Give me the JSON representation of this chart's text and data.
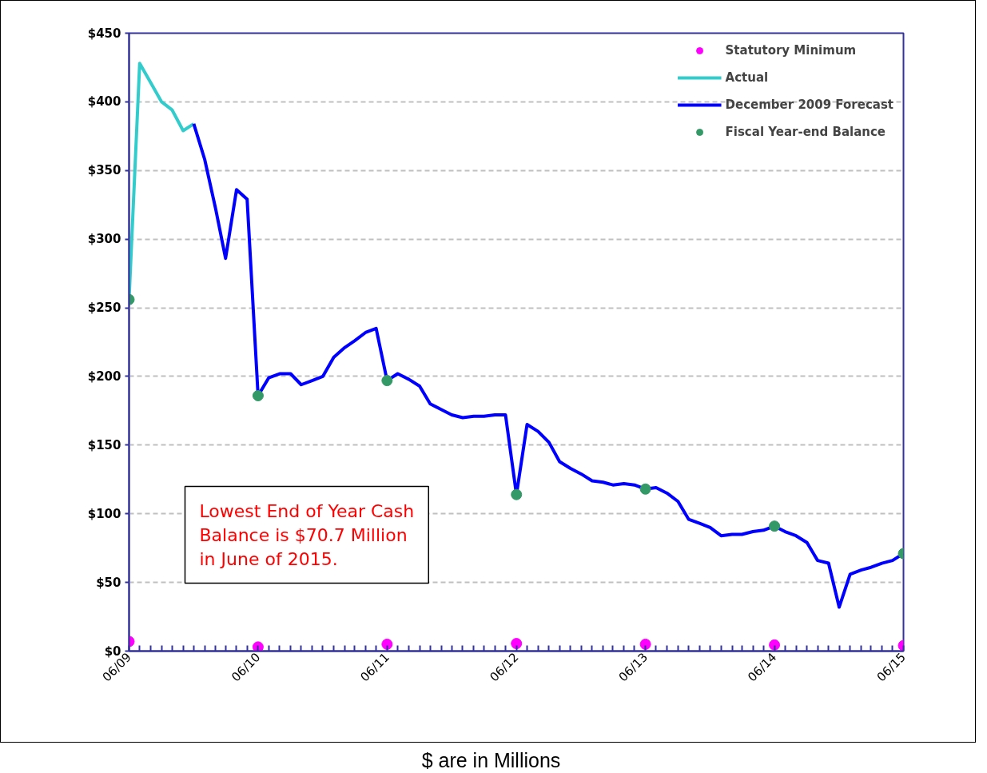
{
  "chart_data": {
    "type": "line",
    "xlim": [
      "2009-06",
      "2015-06"
    ],
    "ylim": [
      0,
      450
    ],
    "xticks": [
      {
        "value": "2009-06",
        "label": "06/09"
      },
      {
        "value": "2009-07",
        "label": null
      },
      {
        "value": "2009-08",
        "label": null
      },
      {
        "value": "2009-09",
        "label": null
      },
      {
        "value": "2009-10",
        "label": null
      },
      {
        "value": "2009-11",
        "label": null
      },
      {
        "value": "2009-12",
        "label": null
      },
      {
        "value": "2010-01",
        "label": null
      },
      {
        "value": "2010-02",
        "label": null
      },
      {
        "value": "2010-03",
        "label": null
      },
      {
        "value": "2010-04",
        "label": null
      },
      {
        "value": "2010-05",
        "label": null
      },
      {
        "value": "2010-06",
        "label": "06/10"
      },
      {
        "value": "2010-07",
        "label": null
      },
      {
        "value": "2010-08",
        "label": null
      },
      {
        "value": "2010-09",
        "label": null
      },
      {
        "value": "2010-10",
        "label": null
      },
      {
        "value": "2010-11",
        "label": null
      },
      {
        "value": "2010-12",
        "label": null
      },
      {
        "value": "2011-01",
        "label": null
      },
      {
        "value": "2011-02",
        "label": null
      },
      {
        "value": "2011-03",
        "label": null
      },
      {
        "value": "2011-04",
        "label": null
      },
      {
        "value": "2011-05",
        "label": null
      },
      {
        "value": "2011-06",
        "label": "06/11"
      },
      {
        "value": "2011-07",
        "label": null
      },
      {
        "value": "2011-08",
        "label": null
      },
      {
        "value": "2011-09",
        "label": null
      },
      {
        "value": "2011-10",
        "label": null
      },
      {
        "value": "2011-11",
        "label": null
      },
      {
        "value": "2011-12",
        "label": null
      },
      {
        "value": "2012-01",
        "label": null
      },
      {
        "value": "2012-02",
        "label": null
      },
      {
        "value": "2012-03",
        "label": null
      },
      {
        "value": "2012-04",
        "label": null
      },
      {
        "value": "2012-05",
        "label": null
      },
      {
        "value": "2012-06",
        "label": "06/12"
      },
      {
        "value": "2012-07",
        "label": null
      },
      {
        "value": "2012-08",
        "label": null
      },
      {
        "value": "2012-09",
        "label": null
      },
      {
        "value": "2012-10",
        "label": null
      },
      {
        "value": "2012-11",
        "label": null
      },
      {
        "value": "2012-12",
        "label": null
      },
      {
        "value": "2013-01",
        "label": null
      },
      {
        "value": "2013-02",
        "label": null
      },
      {
        "value": "2013-03",
        "label": null
      },
      {
        "value": "2013-04",
        "label": null
      },
      {
        "value": "2013-05",
        "label": null
      },
      {
        "value": "2013-06",
        "label": "06/13"
      },
      {
        "value": "2013-07",
        "label": null
      },
      {
        "value": "2013-08",
        "label": null
      },
      {
        "value": "2013-09",
        "label": null
      },
      {
        "value": "2013-10",
        "label": null
      },
      {
        "value": "2013-11",
        "label": null
      },
      {
        "value": "2013-12",
        "label": null
      },
      {
        "value": "2014-01",
        "label": null
      },
      {
        "value": "2014-02",
        "label": null
      },
      {
        "value": "2014-03",
        "label": null
      },
      {
        "value": "2014-04",
        "label": null
      },
      {
        "value": "2014-05",
        "label": null
      },
      {
        "value": "2014-06",
        "label": "06/14"
      },
      {
        "value": "2014-07",
        "label": null
      },
      {
        "value": "2014-08",
        "label": null
      },
      {
        "value": "2014-09",
        "label": null
      },
      {
        "value": "2014-10",
        "label": null
      },
      {
        "value": "2014-11",
        "label": null
      },
      {
        "value": "2014-12",
        "label": null
      },
      {
        "value": "2015-01",
        "label": null
      },
      {
        "value": "2015-02",
        "label": null
      },
      {
        "value": "2015-03",
        "label": null
      },
      {
        "value": "2015-04",
        "label": null
      },
      {
        "value": "2015-05",
        "label": null
      },
      {
        "value": "2015-06",
        "label": "06/15"
      }
    ],
    "yticks": [
      {
        "value": 0,
        "label": "$0"
      },
      {
        "value": 50,
        "label": "$50"
      },
      {
        "value": 100,
        "label": "$100"
      },
      {
        "value": 150,
        "label": "$150"
      },
      {
        "value": 200,
        "label": "$200"
      },
      {
        "value": 250,
        "label": "$250"
      },
      {
        "value": 300,
        "label": "$300"
      },
      {
        "value": 350,
        "label": "$350"
      },
      {
        "value": 400,
        "label": "$400"
      },
      {
        "value": 450,
        "label": "$450"
      }
    ],
    "grid": "y",
    "legend": "top right",
    "series": [
      {
        "name": "Statutory Minimum",
        "type": "scatter",
        "marker": "circle",
        "color": "#ff00ff",
        "x": [
          "2009-06",
          "2010-06",
          "2011-06",
          "2012-06",
          "2013-06",
          "2014-06",
          "2015-06"
        ],
        "values": [
          7,
          3,
          5,
          5.5,
          5,
          4.5,
          4
        ]
      },
      {
        "name": "Actual",
        "color": "#33cccc",
        "x": [
          "2009-06",
          "2009-07",
          "2009-08",
          "2009-09",
          "2009-10",
          "2009-11",
          "2009-12"
        ],
        "values": [
          256,
          428,
          414,
          400,
          394,
          379,
          384
        ]
      },
      {
        "name": "December 2009 Forecast",
        "color": "#0000ff",
        "x": [
          "2009-12",
          "2010-01",
          "2010-02",
          "2010-03",
          "2010-04",
          "2010-05",
          "2010-06",
          "2010-07",
          "2010-08",
          "2010-09",
          "2010-10",
          "2010-11",
          "2010-12",
          "2011-01",
          "2011-02",
          "2011-03",
          "2011-04",
          "2011-05",
          "2011-06",
          "2011-07",
          "2011-08",
          "2011-09",
          "2011-10",
          "2011-11",
          "2011-12",
          "2012-01",
          "2012-02",
          "2012-03",
          "2012-04",
          "2012-05",
          "2012-06",
          "2012-07",
          "2012-08",
          "2012-09",
          "2012-10",
          "2012-11",
          "2012-12",
          "2013-01",
          "2013-02",
          "2013-03",
          "2013-04",
          "2013-05",
          "2013-06",
          "2013-07",
          "2013-08",
          "2013-09",
          "2013-10",
          "2013-11",
          "2013-12",
          "2014-01",
          "2014-02",
          "2014-03",
          "2014-04",
          "2014-05",
          "2014-06",
          "2014-07",
          "2014-08",
          "2014-09",
          "2014-10",
          "2014-11",
          "2014-12",
          "2015-01",
          "2015-02",
          "2015-03",
          "2015-04",
          "2015-05",
          "2015-06"
        ],
        "values": [
          384,
          358,
          322,
          286,
          336,
          329,
          186,
          199,
          202,
          202,
          194,
          197,
          200,
          214,
          221,
          226,
          232,
          235,
          197,
          202,
          198,
          193,
          180,
          176,
          172,
          170,
          171,
          171,
          172,
          172,
          114,
          165,
          160,
          152,
          138,
          133,
          129,
          124,
          123,
          121,
          122,
          121,
          118,
          119,
          115,
          109,
          96,
          93,
          90,
          84,
          85,
          85,
          87,
          88,
          91,
          87,
          84,
          79,
          66,
          64,
          32,
          56,
          59,
          61,
          64,
          66,
          71
        ]
      },
      {
        "name": "Fiscal Year-end Balance",
        "type": "scatter",
        "marker": "circle",
        "color": "#339966",
        "x": [
          "2009-06",
          "2010-06",
          "2011-06",
          "2012-06",
          "2013-06",
          "2014-06",
          "2015-06"
        ],
        "values": [
          256,
          186,
          197,
          114,
          118,
          91,
          71
        ]
      }
    ],
    "annotations": [
      "Lowest End of Year Cash\nBalance is $70.7 Million\nin June of 2015.",
      "$ are in Millions"
    ]
  }
}
